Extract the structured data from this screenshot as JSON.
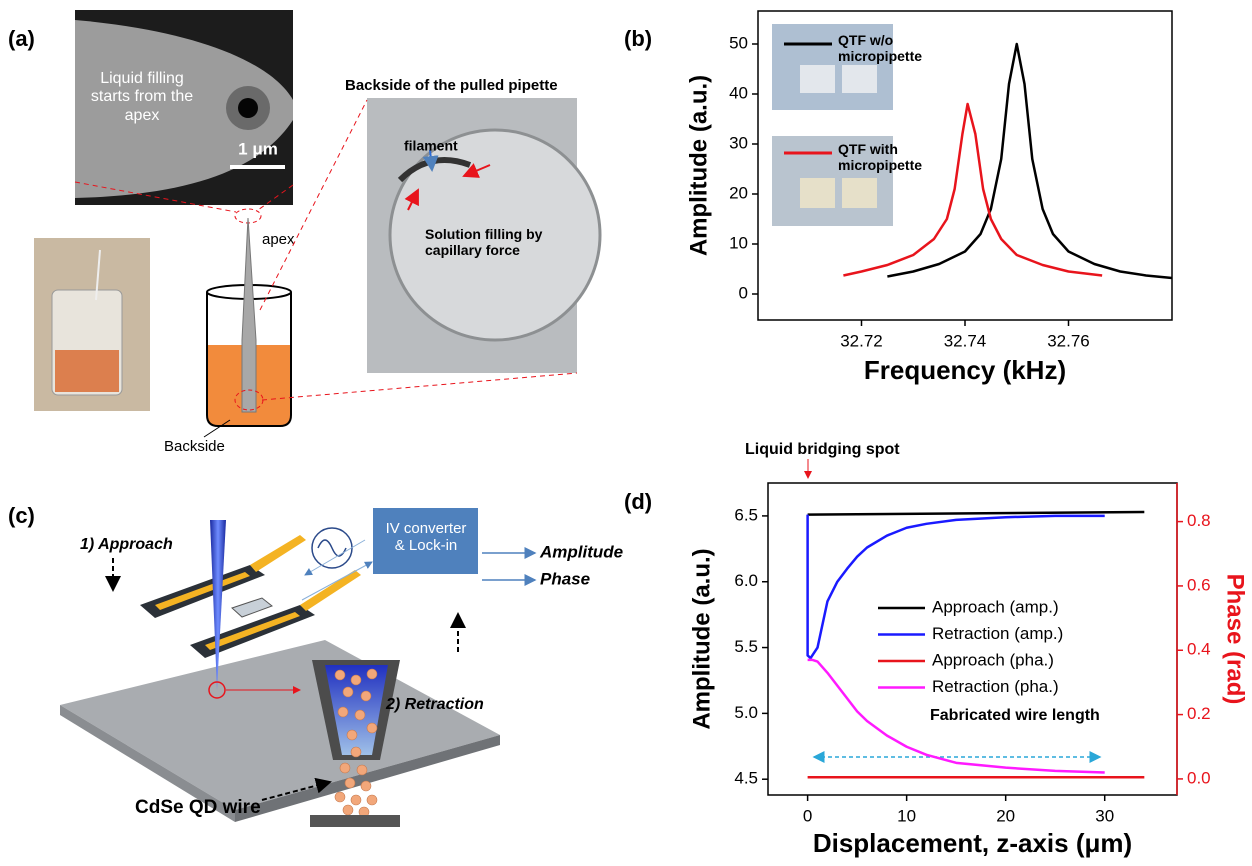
{
  "panel_labels": [
    "(a)",
    "(b)",
    "(c)",
    "(d)"
  ],
  "panel_a": {
    "sem_caption": "Liquid filling starts from the apex",
    "scale_bar": "1 μm",
    "apex": "apex",
    "backside": "Backside",
    "photo_title": "Backside of the pulled pipette",
    "filament": "filament",
    "solution": "Solution filling by capillary force"
  },
  "panel_c": {
    "approach": "1) Approach",
    "converter": "IV converter & Lock-in",
    "amplitude": "Amplitude",
    "phase": "Phase",
    "qtf": "QTF",
    "retraction": "2) Retraction",
    "wire": "CdSe QD wire"
  },
  "chart_data": [
    {
      "type": "line",
      "x_label": "Frequency (kHz)",
      "y_label": "Amplitude (a.u.)",
      "xlim": [
        32.7,
        32.78
      ],
      "xticks": [
        32.72,
        32.74,
        32.76
      ],
      "ylim": [
        -5.2,
        56.6
      ],
      "yticks": [
        0,
        10,
        20,
        30,
        40,
        50
      ],
      "series": [
        {
          "name": "QTF w/o micropipette",
          "color": "#000000",
          "x": [
            32.725,
            32.73,
            32.735,
            32.74,
            32.743,
            32.745,
            32.747,
            32.7485,
            32.75,
            32.7515,
            32.753,
            32.755,
            32.757,
            32.76,
            32.765,
            32.77,
            32.775,
            32.78
          ],
          "values": [
            3.5,
            4.5,
            6,
            8.5,
            12,
            17,
            27,
            42,
            50,
            42,
            27,
            17,
            12,
            8.5,
            6,
            4.5,
            3.7,
            3.2
          ]
        },
        {
          "name": "QTF with micropipette",
          "color": "#e8141c",
          "x": [
            32.7165,
            32.72,
            32.725,
            32.73,
            32.734,
            32.7365,
            32.738,
            32.7395,
            32.7405,
            32.742,
            32.7435,
            32.745,
            32.747,
            32.75,
            32.755,
            32.76,
            32.7665
          ],
          "values": [
            3.7,
            4.5,
            5.8,
            7.8,
            11,
            15,
            21,
            32,
            38,
            32,
            21,
            15,
            11,
            7.8,
            5.8,
            4.5,
            3.7
          ]
        }
      ]
    },
    {
      "type": "line",
      "annotation": "Liquid bridging spot",
      "annotation_2": "Fabricated wire length",
      "x_label": "Displacement, z-axis (μm)",
      "y_label": "Amplitude (a.u.)",
      "y2_label": "Phase (rad)",
      "xlim": [
        -4,
        37.3
      ],
      "xticks": [
        0,
        10,
        20,
        30
      ],
      "ylim": [
        4.38,
        6.75
      ],
      "yticks": [
        4.5,
        {
          "value": 5,
          "label": "5.0"
        },
        5.5,
        {
          "value": 6,
          "label": "6.0"
        },
        6.5
      ],
      "y2lim": [
        -0.05,
        0.92
      ],
      "y2ticks": [
        {
          "value": 0,
          "label": "0.0"
        },
        0.2,
        0.4,
        0.6,
        0.8
      ],
      "y2color": "#e8141c",
      "series": [
        {
          "name": "Approach (amp.)",
          "color": "#000000",
          "x": [
            0,
            34
          ],
          "values": [
            6.51,
            6.53
          ]
        },
        {
          "name": "Retraction (amp.)",
          "color": "#1a1aff",
          "x": [
            0,
            0,
            0.3,
            1,
            2,
            3,
            4,
            5,
            6,
            8,
            10,
            12,
            15,
            20,
            25,
            30
          ],
          "values": [
            6.51,
            5.44,
            5.42,
            5.5,
            5.85,
            6.0,
            6.1,
            6.19,
            6.26,
            6.35,
            6.41,
            6.44,
            6.47,
            6.49,
            6.5,
            6.5
          ]
        },
        {
          "name": "Approach (pha.)",
          "color": "#e8141c",
          "axis": "y2",
          "x": [
            0,
            34
          ],
          "values": [
            0.005,
            0.005
          ]
        },
        {
          "name": "Retraction (pha.)",
          "color": "#ff1aff",
          "axis": "y2",
          "x": [
            0,
            0.5,
            1,
            2,
            3,
            4,
            5,
            6,
            8,
            10,
            12,
            15,
            20,
            25,
            30
          ],
          "values": [
            0.37,
            0.37,
            0.365,
            0.33,
            0.29,
            0.25,
            0.21,
            0.18,
            0.135,
            0.1,
            0.075,
            0.05,
            0.035,
            0.025,
            0.02
          ]
        }
      ]
    }
  ]
}
